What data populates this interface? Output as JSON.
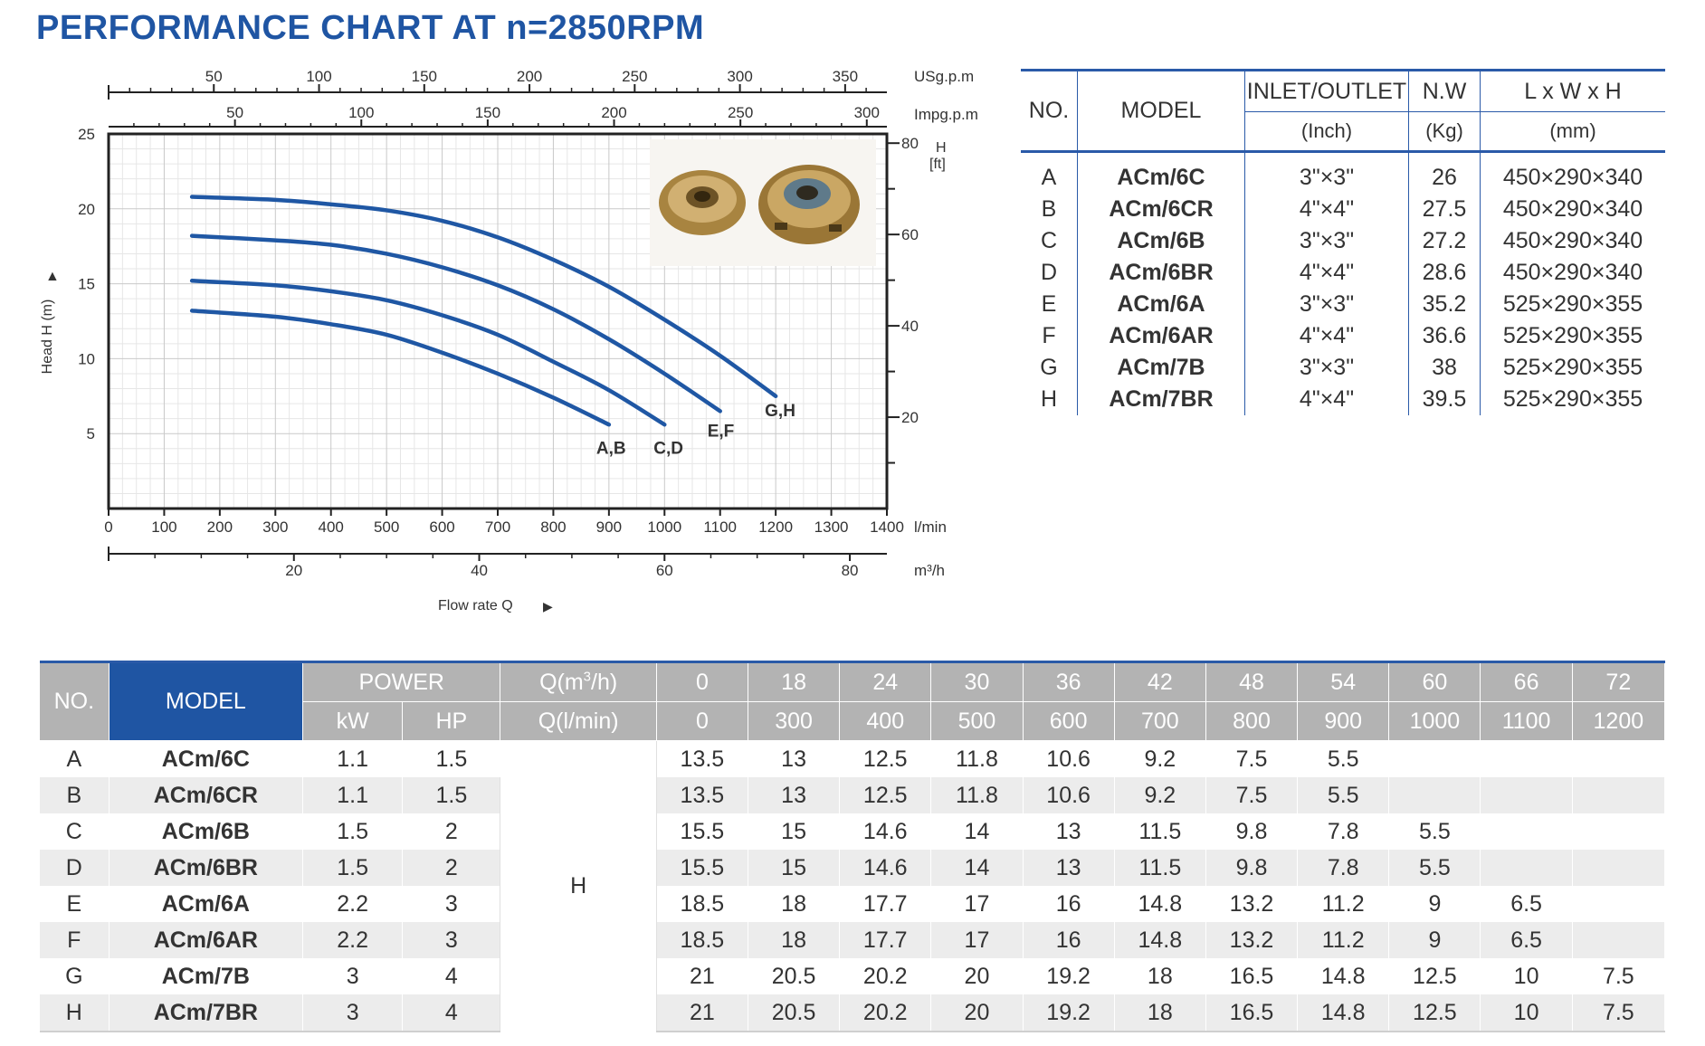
{
  "title": "PERFORMANCE CHART AT n=2850RPM",
  "chart_data": {
    "type": "line",
    "title": "PERFORMANCE CHART AT n=2850RPM",
    "xlabel": "Flow rate Q",
    "ylabel": "Head H (m)",
    "x_unit": "l/min",
    "y_unit": "m",
    "xlim": [
      0,
      1400
    ],
    "ylim": [
      0,
      25
    ],
    "grid": true,
    "x_ticks": [
      "0",
      "100",
      "200",
      "300",
      "400",
      "500",
      "600",
      "700",
      "800",
      "900",
      "1000",
      "1100",
      "1200",
      "1300",
      "1400"
    ],
    "y_ticks": [
      "5",
      "10",
      "15",
      "20",
      "25"
    ],
    "secondary_axes": {
      "usgpm": {
        "unit": "USg.p.m",
        "ticks": [
          50,
          100,
          150,
          200,
          250,
          300,
          350
        ]
      },
      "impgpm": {
        "unit": "Impg.p.m",
        "ticks": [
          50,
          100,
          150,
          200,
          250,
          300
        ]
      },
      "m3h": {
        "unit": "m³/h",
        "ticks": [
          20,
          40,
          60,
          80
        ]
      },
      "ft": {
        "unit_line1": "H",
        "unit_line2": "[ft]",
        "ticks": [
          20,
          40,
          60,
          80
        ]
      }
    },
    "series": [
      {
        "name": "A,B",
        "x": [
          150,
          300,
          400,
          500,
          600,
          700,
          800,
          900
        ],
        "y": [
          13.2,
          12.8,
          12.3,
          11.6,
          10.4,
          9.0,
          7.4,
          5.6
        ]
      },
      {
        "name": "C,D",
        "x": [
          150,
          300,
          400,
          500,
          600,
          700,
          800,
          900,
          1000
        ],
        "y": [
          15.2,
          14.9,
          14.5,
          13.9,
          12.9,
          11.6,
          9.8,
          7.9,
          5.6
        ]
      },
      {
        "name": "E,F",
        "x": [
          150,
          300,
          400,
          500,
          600,
          700,
          800,
          900,
          1000,
          1100
        ],
        "y": [
          18.2,
          17.9,
          17.6,
          17.0,
          16.1,
          14.9,
          13.3,
          11.3,
          9.0,
          6.5
        ]
      },
      {
        "name": "G,H",
        "x": [
          150,
          300,
          400,
          500,
          600,
          700,
          800,
          900,
          1000,
          1100,
          1200
        ],
        "y": [
          20.8,
          20.6,
          20.3,
          19.9,
          19.2,
          18.1,
          16.6,
          14.8,
          12.6,
          10.2,
          7.5
        ]
      }
    ],
    "line_color": "#1f57a4"
  },
  "model_table": {
    "headers": {
      "no": "NO.",
      "model": "MODEL",
      "inlet": "INLET/OUTLET",
      "inlet_unit": "(Inch)",
      "nw": "N.W",
      "nw_unit": "(Kg)",
      "dims": "L x W x H",
      "dims_unit": "(mm)"
    },
    "rows": [
      {
        "no": "A",
        "model": "ACm/6C",
        "inlet": "3\"×3\"",
        "nw": "26",
        "dims": "450×290×340"
      },
      {
        "no": "B",
        "model": "ACm/6CR",
        "inlet": "4\"×4\"",
        "nw": "27.5",
        "dims": "450×290×340"
      },
      {
        "no": "C",
        "model": "ACm/6B",
        "inlet": "3\"×3\"",
        "nw": "27.2",
        "dims": "450×290×340"
      },
      {
        "no": "D",
        "model": "ACm/6BR",
        "inlet": "4\"×4\"",
        "nw": "28.6",
        "dims": "450×290×340"
      },
      {
        "no": "E",
        "model": "ACm/6A",
        "inlet": "3\"×3\"",
        "nw": "35.2",
        "dims": "525×290×355"
      },
      {
        "no": "F",
        "model": "ACm/6AR",
        "inlet": "4\"×4\"",
        "nw": "36.6",
        "dims": "525×290×355"
      },
      {
        "no": "G",
        "model": "ACm/7B",
        "inlet": "3\"×3\"",
        "nw": "38",
        "dims": "525×290×355"
      },
      {
        "no": "H",
        "model": "ACm/7BR",
        "inlet": "4\"×4\"",
        "nw": "39.5",
        "dims": "525×290×355"
      }
    ]
  },
  "perf_table": {
    "headers": {
      "no": "NO.",
      "model": "MODEL",
      "power": "POWER",
      "kw": "kW",
      "hp": "HP",
      "q_m3h_pre": "Q(m",
      "q_m3h_sup": "3",
      "q_m3h_post": "/h)",
      "q_lmin": "Q(l/min)",
      "q_m3h_values": [
        "0",
        "18",
        "24",
        "30",
        "36",
        "42",
        "48",
        "54",
        "60",
        "66",
        "72"
      ],
      "q_lmin_values": [
        "0",
        "300",
        "400",
        "500",
        "600",
        "700",
        "800",
        "900",
        "1000",
        "1100",
        "1200"
      ]
    },
    "h_label": "H",
    "rows": [
      {
        "no": "A",
        "model": "ACm/6C",
        "kw": "1.1",
        "hp": "1.5",
        "h": [
          "13.5",
          "13",
          "12.5",
          "11.8",
          "10.6",
          "9.2",
          "7.5",
          "5.5",
          "",
          "",
          ""
        ]
      },
      {
        "no": "B",
        "model": "ACm/6CR",
        "kw": "1.1",
        "hp": "1.5",
        "h": [
          "13.5",
          "13",
          "12.5",
          "11.8",
          "10.6",
          "9.2",
          "7.5",
          "5.5",
          "",
          "",
          ""
        ]
      },
      {
        "no": "C",
        "model": "ACm/6B",
        "kw": "1.5",
        "hp": "2",
        "h": [
          "15.5",
          "15",
          "14.6",
          "14",
          "13",
          "11.5",
          "9.8",
          "7.8",
          "5.5",
          "",
          ""
        ]
      },
      {
        "no": "D",
        "model": "ACm/6BR",
        "kw": "1.5",
        "hp": "2",
        "h": [
          "15.5",
          "15",
          "14.6",
          "14",
          "13",
          "11.5",
          "9.8",
          "7.8",
          "5.5",
          "",
          ""
        ]
      },
      {
        "no": "E",
        "model": "ACm/6A",
        "kw": "2.2",
        "hp": "3",
        "h": [
          "18.5",
          "18",
          "17.7",
          "17",
          "16",
          "14.8",
          "13.2",
          "11.2",
          "9",
          "6.5",
          ""
        ]
      },
      {
        "no": "F",
        "model": "ACm/6AR",
        "kw": "2.2",
        "hp": "3",
        "h": [
          "18.5",
          "18",
          "17.7",
          "17",
          "16",
          "14.8",
          "13.2",
          "11.2",
          "9",
          "6.5",
          ""
        ]
      },
      {
        "no": "G",
        "model": "ACm/7B",
        "kw": "3",
        "hp": "4",
        "h": [
          "21",
          "20.5",
          "20.2",
          "20",
          "19.2",
          "18",
          "16.5",
          "14.8",
          "12.5",
          "10",
          "7.5"
        ]
      },
      {
        "no": "H",
        "model": "ACm/7BR",
        "kw": "3",
        "hp": "4",
        "h": [
          "21",
          "20.5",
          "20.2",
          "20",
          "19.2",
          "18",
          "16.5",
          "14.8",
          "12.5",
          "10",
          "7.5"
        ]
      }
    ]
  },
  "photo": {
    "icon": "pump-impeller-photo"
  }
}
